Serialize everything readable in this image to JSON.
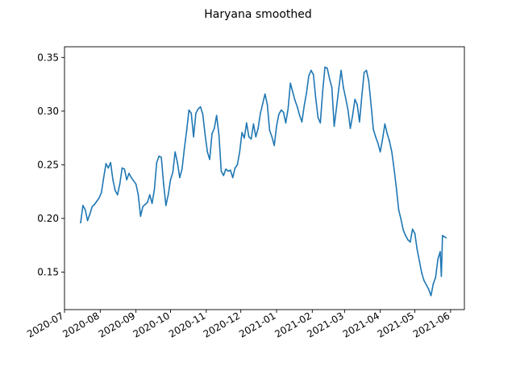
{
  "chart_data": {
    "type": "line",
    "title": "Haryana smoothed",
    "xlabel": "",
    "ylabel": "",
    "x_axis": "date",
    "xlim": [
      "2020-07-01",
      "2021-06-13"
    ],
    "ylim": [
      0.115,
      0.36
    ],
    "grid": false,
    "x_tick_labels": [
      "2020-07",
      "2020-08",
      "2020-09",
      "2020-10",
      "2020-11",
      "2020-12",
      "2021-01",
      "2021-02",
      "2021-03",
      "2021-04",
      "2021-05",
      "2021-06"
    ],
    "y_ticks": [
      0.15,
      0.2,
      0.25,
      0.3,
      0.35
    ],
    "y_tick_labels": [
      "0.15",
      "0.20",
      "0.25",
      "0.30",
      "0.35"
    ],
    "colors": {
      "series": "#1f77b4"
    },
    "series": [
      {
        "points": [
          [
            "2020-07-15",
            0.196
          ],
          [
            "2020-07-17",
            0.212
          ],
          [
            "2020-07-19",
            0.208
          ],
          [
            "2020-07-21",
            0.198
          ],
          [
            "2020-07-23",
            0.204
          ],
          [
            "2020-07-25",
            0.211
          ],
          [
            "2020-07-27",
            0.213
          ],
          [
            "2020-07-29",
            0.216
          ],
          [
            "2020-07-31",
            0.219
          ],
          [
            "2020-08-02",
            0.224
          ],
          [
            "2020-08-04",
            0.238
          ],
          [
            "2020-08-06",
            0.251
          ],
          [
            "2020-08-08",
            0.247
          ],
          [
            "2020-08-10",
            0.252
          ],
          [
            "2020-08-12",
            0.236
          ],
          [
            "2020-08-14",
            0.226
          ],
          [
            "2020-08-16",
            0.222
          ],
          [
            "2020-08-18",
            0.232
          ],
          [
            "2020-08-20",
            0.247
          ],
          [
            "2020-08-22",
            0.246
          ],
          [
            "2020-08-24",
            0.236
          ],
          [
            "2020-08-26",
            0.242
          ],
          [
            "2020-08-28",
            0.238
          ],
          [
            "2020-08-30",
            0.235
          ],
          [
            "2020-09-01",
            0.232
          ],
          [
            "2020-09-03",
            0.222
          ],
          [
            "2020-09-05",
            0.202
          ],
          [
            "2020-09-07",
            0.211
          ],
          [
            "2020-09-09",
            0.213
          ],
          [
            "2020-09-11",
            0.215
          ],
          [
            "2020-09-13",
            0.222
          ],
          [
            "2020-09-15",
            0.214
          ],
          [
            "2020-09-17",
            0.227
          ],
          [
            "2020-09-19",
            0.252
          ],
          [
            "2020-09-21",
            0.258
          ],
          [
            "2020-09-23",
            0.257
          ],
          [
            "2020-09-25",
            0.232
          ],
          [
            "2020-09-27",
            0.212
          ],
          [
            "2020-09-29",
            0.222
          ],
          [
            "2020-10-01",
            0.236
          ],
          [
            "2020-10-03",
            0.243
          ],
          [
            "2020-10-05",
            0.262
          ],
          [
            "2020-10-07",
            0.252
          ],
          [
            "2020-10-09",
            0.238
          ],
          [
            "2020-10-11",
            0.246
          ],
          [
            "2020-10-13",
            0.265
          ],
          [
            "2020-10-15",
            0.282
          ],
          [
            "2020-10-17",
            0.301
          ],
          [
            "2020-10-19",
            0.298
          ],
          [
            "2020-10-21",
            0.276
          ],
          [
            "2020-10-23",
            0.298
          ],
          [
            "2020-10-25",
            0.302
          ],
          [
            "2020-10-27",
            0.304
          ],
          [
            "2020-10-29",
            0.297
          ],
          [
            "2020-10-31",
            0.278
          ],
          [
            "2020-11-02",
            0.262
          ],
          [
            "2020-11-04",
            0.255
          ],
          [
            "2020-11-06",
            0.279
          ],
          [
            "2020-11-08",
            0.284
          ],
          [
            "2020-11-10",
            0.296
          ],
          [
            "2020-11-12",
            0.278
          ],
          [
            "2020-11-14",
            0.244
          ],
          [
            "2020-11-16",
            0.24
          ],
          [
            "2020-11-18",
            0.246
          ],
          [
            "2020-11-20",
            0.244
          ],
          [
            "2020-11-22",
            0.245
          ],
          [
            "2020-11-24",
            0.238
          ],
          [
            "2020-11-26",
            0.247
          ],
          [
            "2020-11-28",
            0.25
          ],
          [
            "2020-11-30",
            0.262
          ],
          [
            "2020-12-02",
            0.28
          ],
          [
            "2020-12-04",
            0.275
          ],
          [
            "2020-12-06",
            0.289
          ],
          [
            "2020-12-08",
            0.276
          ],
          [
            "2020-12-10",
            0.274
          ],
          [
            "2020-12-12",
            0.288
          ],
          [
            "2020-12-14",
            0.276
          ],
          [
            "2020-12-16",
            0.284
          ],
          [
            "2020-12-18",
            0.298
          ],
          [
            "2020-12-20",
            0.307
          ],
          [
            "2020-12-22",
            0.316
          ],
          [
            "2020-12-24",
            0.306
          ],
          [
            "2020-12-26",
            0.282
          ],
          [
            "2020-12-28",
            0.276
          ],
          [
            "2020-12-30",
            0.268
          ],
          [
            "2021-01-01",
            0.286
          ],
          [
            "2021-01-03",
            0.297
          ],
          [
            "2021-01-05",
            0.301
          ],
          [
            "2021-01-07",
            0.299
          ],
          [
            "2021-01-09",
            0.289
          ],
          [
            "2021-01-11",
            0.302
          ],
          [
            "2021-01-13",
            0.326
          ],
          [
            "2021-01-15",
            0.318
          ],
          [
            "2021-01-17",
            0.31
          ],
          [
            "2021-01-19",
            0.304
          ],
          [
            "2021-01-21",
            0.296
          ],
          [
            "2021-01-23",
            0.29
          ],
          [
            "2021-01-25",
            0.305
          ],
          [
            "2021-01-27",
            0.317
          ],
          [
            "2021-01-29",
            0.333
          ],
          [
            "2021-01-31",
            0.338
          ],
          [
            "2021-02-02",
            0.334
          ],
          [
            "2021-02-04",
            0.312
          ],
          [
            "2021-02-06",
            0.294
          ],
          [
            "2021-02-08",
            0.289
          ],
          [
            "2021-02-10",
            0.318
          ],
          [
            "2021-02-12",
            0.341
          ],
          [
            "2021-02-14",
            0.34
          ],
          [
            "2021-02-16",
            0.33
          ],
          [
            "2021-02-18",
            0.322
          ],
          [
            "2021-02-20",
            0.286
          ],
          [
            "2021-02-22",
            0.303
          ],
          [
            "2021-02-24",
            0.321
          ],
          [
            "2021-02-26",
            0.338
          ],
          [
            "2021-02-28",
            0.322
          ],
          [
            "2021-03-02",
            0.312
          ],
          [
            "2021-03-04",
            0.301
          ],
          [
            "2021-03-06",
            0.284
          ],
          [
            "2021-03-08",
            0.296
          ],
          [
            "2021-03-10",
            0.311
          ],
          [
            "2021-03-12",
            0.306
          ],
          [
            "2021-03-14",
            0.29
          ],
          [
            "2021-03-16",
            0.314
          ],
          [
            "2021-03-18",
            0.336
          ],
          [
            "2021-03-20",
            0.338
          ],
          [
            "2021-03-22",
            0.328
          ],
          [
            "2021-03-24",
            0.306
          ],
          [
            "2021-03-26",
            0.283
          ],
          [
            "2021-03-28",
            0.276
          ],
          [
            "2021-03-30",
            0.27
          ],
          [
            "2021-04-01",
            0.262
          ],
          [
            "2021-04-03",
            0.274
          ],
          [
            "2021-04-05",
            0.288
          ],
          [
            "2021-04-07",
            0.279
          ],
          [
            "2021-04-09",
            0.272
          ],
          [
            "2021-04-11",
            0.262
          ],
          [
            "2021-04-13",
            0.246
          ],
          [
            "2021-04-15",
            0.228
          ],
          [
            "2021-04-17",
            0.208
          ],
          [
            "2021-04-19",
            0.199
          ],
          [
            "2021-04-21",
            0.189
          ],
          [
            "2021-04-23",
            0.184
          ],
          [
            "2021-04-25",
            0.18
          ],
          [
            "2021-04-27",
            0.178
          ],
          [
            "2021-04-29",
            0.19
          ],
          [
            "2021-05-01",
            0.186
          ],
          [
            "2021-05-03",
            0.171
          ],
          [
            "2021-05-05",
            0.16
          ],
          [
            "2021-05-07",
            0.149
          ],
          [
            "2021-05-09",
            0.142
          ],
          [
            "2021-05-11",
            0.138
          ],
          [
            "2021-05-13",
            0.134
          ],
          [
            "2021-05-15",
            0.128
          ],
          [
            "2021-05-17",
            0.139
          ],
          [
            "2021-05-19",
            0.145
          ],
          [
            "2021-05-21",
            0.162
          ],
          [
            "2021-05-23",
            0.169
          ],
          [
            "2021-05-24",
            0.146
          ],
          [
            "2021-05-25",
            0.184
          ],
          [
            "2021-05-28",
            0.182
          ]
        ]
      }
    ]
  }
}
